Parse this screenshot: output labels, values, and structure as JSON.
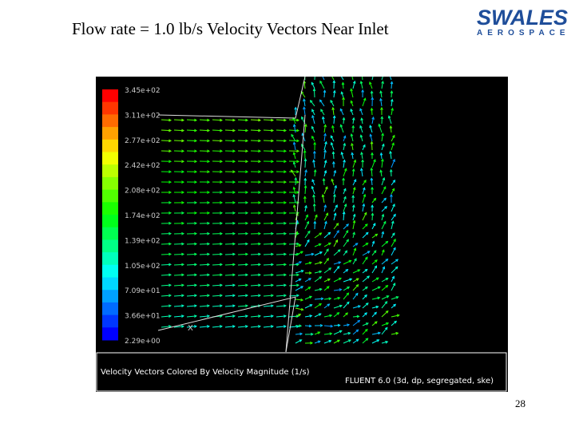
{
  "header": {
    "title": "Flow rate = 1.0 lb/s Velocity Vectors Near Inlet",
    "logo": {
      "name": "SWALES",
      "subtitle": "AEROSPACE"
    }
  },
  "figure": {
    "colorbar_labels": [
      "3.45e+02",
      "3.11e+02",
      "2.77e+02",
      "2.42e+02",
      "2.08e+02",
      "1.74e+02",
      "1.39e+02",
      "1.05e+02",
      "7.09e+01",
      "3.66e+01",
      "2.29e+00"
    ],
    "axis_label": "X",
    "caption": "Velocity Vectors Colored By Velocity Magnitude (1/s)",
    "software": "FLUENT 6.0 (3d, dp, segregated, ske)"
  },
  "footer": {
    "page_number": "28"
  }
}
